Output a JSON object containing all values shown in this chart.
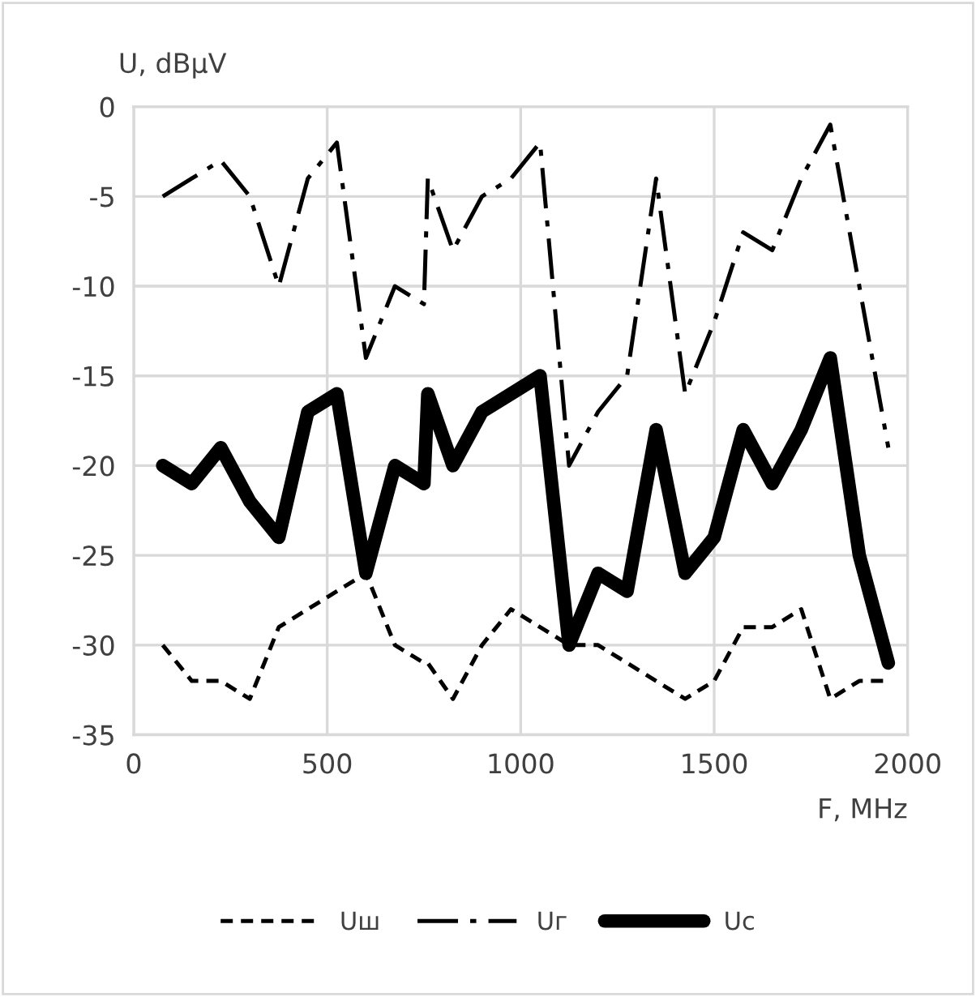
{
  "chart_data": {
    "type": "line",
    "xlabel": "F, MHz",
    "ylabel": "U, dBμV",
    "x": [
      75,
      150,
      225,
      300,
      375,
      450,
      525,
      600,
      675,
      750,
      760,
      825,
      900,
      975,
      1050,
      1125,
      1200,
      1275,
      1350,
      1425,
      1500,
      1575,
      1650,
      1725,
      1800,
      1875,
      1950
    ],
    "series": [
      {
        "name": "Uш",
        "color": "#000000",
        "line_style": "dashed",
        "values": [
          -30,
          -32,
          -32,
          -33,
          -29,
          -28,
          -27,
          -26,
          -30,
          -31,
          -31,
          -33,
          -30,
          -28,
          -29,
          -30,
          -30,
          -31,
          -32,
          -33,
          -32,
          -29,
          -29,
          -28,
          -33,
          -32,
          -32
        ]
      },
      {
        "name": "Uг",
        "color": "#000000",
        "line_style": "dashdot",
        "values": [
          -5,
          -4,
          -3,
          -5,
          -10,
          -4,
          -2,
          -14,
          -10,
          -11,
          -4,
          -8,
          -5,
          -4,
          -2,
          -20,
          -17,
          -15,
          -4,
          -16,
          -12,
          -7,
          -8,
          -4,
          -1,
          -10,
          -19
        ]
      },
      {
        "name": "Uc",
        "color": "#000000",
        "line_style": "solid",
        "values": [
          -20,
          -21,
          -19,
          -22,
          -24,
          -17,
          -16,
          -26,
          -20,
          -21,
          -16,
          -20,
          -17,
          -16,
          -15,
          -30,
          -26,
          -27,
          -18,
          -26,
          -24,
          -18,
          -21,
          -18,
          -14,
          -25,
          -31
        ]
      }
    ],
    "xlim": [
      0,
      2000
    ],
    "xticks": [
      0,
      500,
      1000,
      1500,
      2000
    ],
    "ylim": [
      -35,
      0
    ],
    "yticks": [
      -35,
      -30,
      -25,
      -20,
      -15,
      -10,
      -5,
      0
    ],
    "grid": true,
    "legend": "bottom",
    "marker": "none"
  }
}
